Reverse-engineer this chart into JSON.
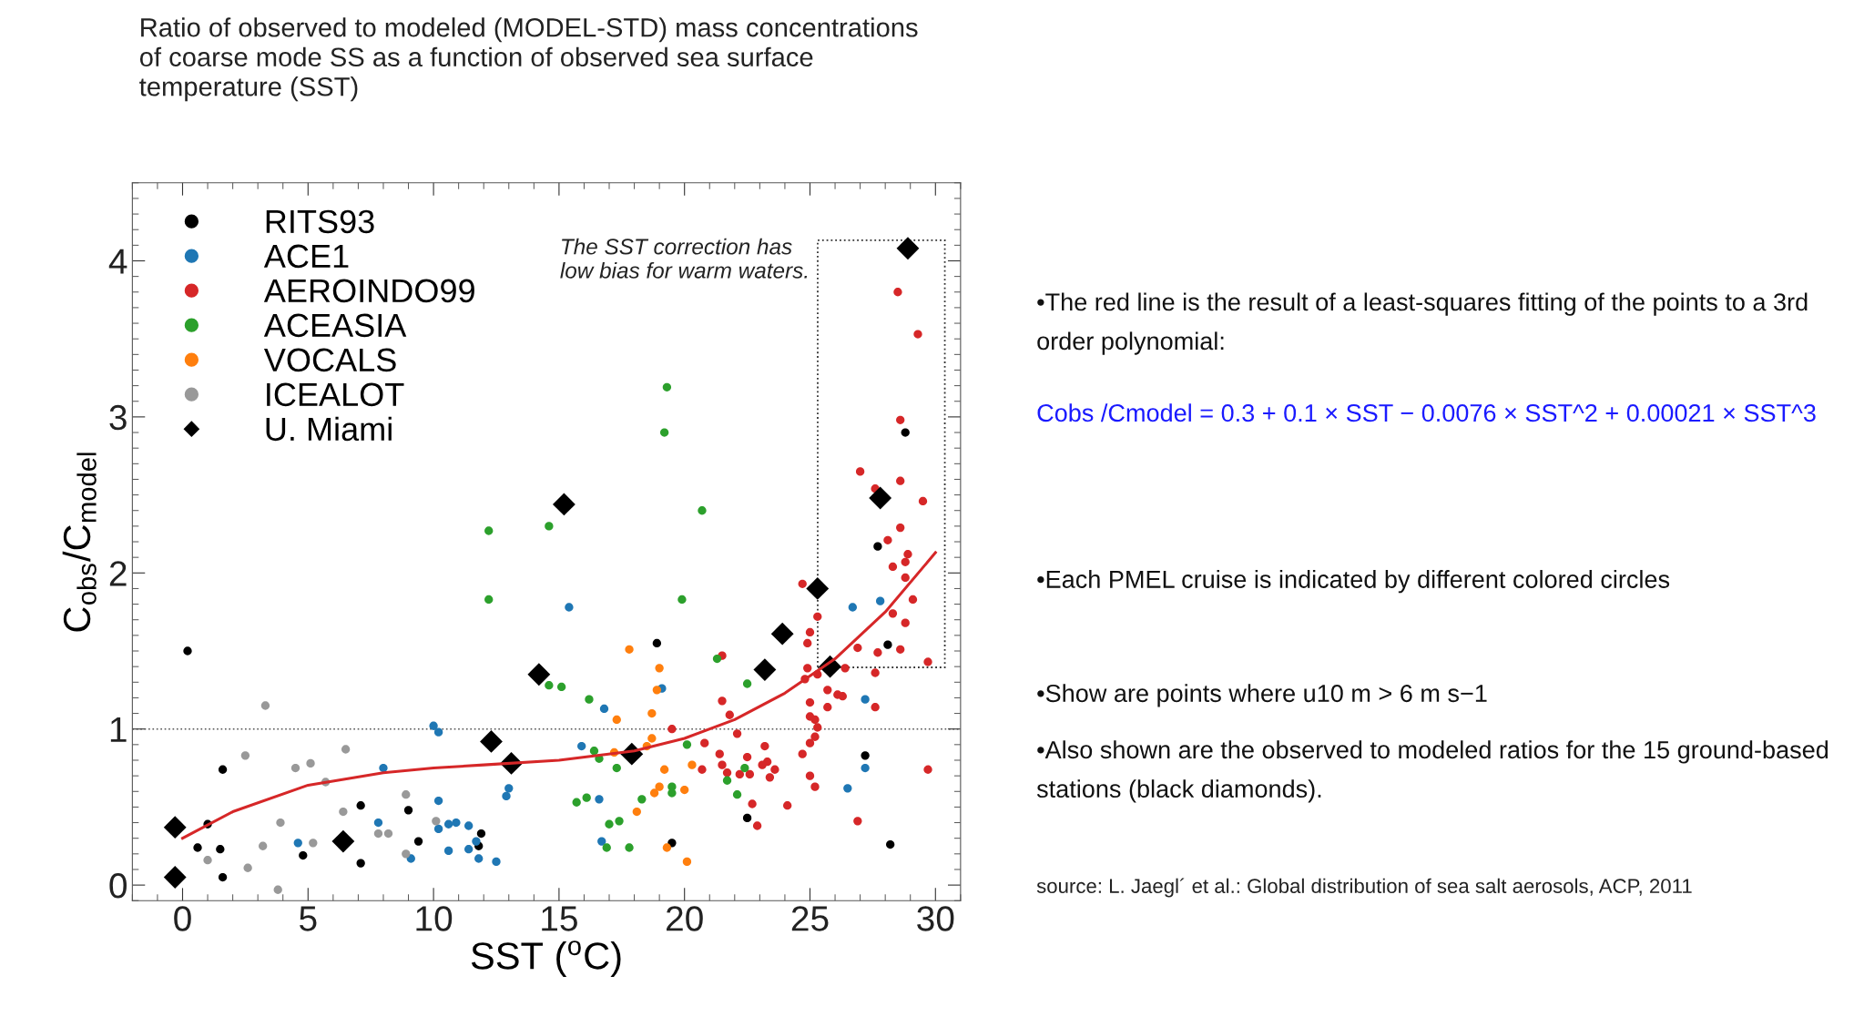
{
  "chart_data": {
    "type": "scatter",
    "title": "Ratio of observed to modeled (MODEL-STD) mass concentrations of coarse mode SS as a function of observed sea surface temperature (SST)",
    "xlabel": "SST ($^{o}$C)",
    "ylabel": "C$_{obs}$/C$_{model}$",
    "xlim": [
      -2,
      31
    ],
    "xticks": [
      0,
      5,
      10,
      15,
      20,
      25,
      30
    ],
    "ylim": [
      -0.1,
      4.5
    ],
    "yticks": [
      0,
      1,
      2,
      3,
      4
    ],
    "grid": false,
    "legend": "top left",
    "marker": "circle",
    "series": [
      {
        "name": "RITS93",
        "color": "#000000",
        "x": [
          0.2,
          1.6,
          1.0,
          0.6,
          1.5,
          1.6,
          7.1,
          7.1,
          4.8,
          9.0,
          9.4,
          11.9,
          11.8,
          18.9,
          19.5,
          22.5,
          27.7,
          28.1,
          27.2,
          28.2,
          28.8
        ],
        "values": [
          1.5,
          0.74,
          0.39,
          0.24,
          0.23,
          0.05,
          0.51,
          0.14,
          0.19,
          0.48,
          0.28,
          0.33,
          0.25,
          1.55,
          0.27,
          0.43,
          2.17,
          1.54,
          0.83,
          0.26,
          2.9
        ]
      },
      {
        "name": "ACE1",
        "color": "#1f77b4",
        "x": [
          10.0,
          10.2,
          8.0,
          7.8,
          4.6,
          9.1,
          10.2,
          10.2,
          10.6,
          10.9,
          11.4,
          10.6,
          11.4,
          11.7,
          11.8,
          12.5,
          12.9,
          13.0,
          15.4,
          19.1,
          16.8,
          15.9,
          16.6,
          16.7,
          26.7,
          27.8,
          27.2,
          27.2,
          26.5
        ],
        "values": [
          1.02,
          0.98,
          0.75,
          0.4,
          0.27,
          0.17,
          0.54,
          0.36,
          0.39,
          0.4,
          0.38,
          0.22,
          0.23,
          0.28,
          0.17,
          0.15,
          0.57,
          0.62,
          1.78,
          1.26,
          1.13,
          0.89,
          0.55,
          0.28,
          1.78,
          1.82,
          1.19,
          0.75,
          0.62
        ]
      },
      {
        "name": "AEROINDO99",
        "color": "#d62728",
        "x": [
          28.5,
          29.3,
          28.6,
          27.0,
          28.6,
          29.5,
          27.6,
          28.6,
          28.1,
          28.9,
          28.3,
          28.8,
          28.8,
          29.1,
          28.3,
          28.8,
          28.6,
          27.7,
          29.7,
          26.9,
          27.6,
          27.6,
          26.9,
          29.7,
          24.7,
          25.3,
          25.0,
          24.9,
          24.9,
          24.8,
          25.3,
          25.7,
          26.1,
          25.7,
          25.0,
          25.0,
          25.2,
          25.3,
          25.2,
          25.0,
          24.7,
          25.0,
          25.2,
          21.5,
          21.5,
          21.8,
          19.5,
          22.1,
          20.8,
          20.7,
          21.4,
          21.5,
          21.7,
          22.2,
          22.5,
          22.6,
          23.2,
          23.3,
          23.1,
          23.4,
          23.6,
          22.7,
          24.1,
          22.9,
          26.4,
          26.3
        ],
        "values": [
          3.8,
          3.53,
          2.98,
          2.65,
          2.59,
          2.46,
          2.54,
          2.29,
          2.21,
          2.12,
          2.04,
          2.07,
          1.97,
          1.83,
          1.74,
          1.68,
          1.51,
          1.49,
          1.43,
          1.52,
          1.36,
          1.14,
          0.41,
          0.74,
          1.93,
          1.72,
          1.62,
          1.55,
          1.39,
          1.32,
          1.35,
          1.25,
          1.22,
          1.14,
          1.17,
          1.08,
          1.06,
          1.01,
          0.95,
          0.91,
          0.84,
          0.7,
          0.63,
          1.47,
          1.18,
          1.09,
          1.0,
          0.97,
          0.91,
          0.74,
          0.84,
          0.77,
          0.72,
          0.71,
          0.82,
          0.71,
          0.89,
          0.79,
          0.77,
          0.69,
          0.74,
          0.52,
          0.51,
          0.38,
          1.39,
          1.21
        ]
      },
      {
        "name": "ACEASIA",
        "color": "#2ca02c",
        "x": [
          12.2,
          14.6,
          12.2,
          14.6,
          15.1,
          19.3,
          19.2,
          20.7,
          19.9,
          16.2,
          16.4,
          16.6,
          17.3,
          15.7,
          16.1,
          17.0,
          17.4,
          16.9,
          17.8,
          18.3,
          19.5,
          19.5,
          20.1,
          21.3,
          22.5,
          22.4,
          21.7,
          22.1
        ],
        "values": [
          2.27,
          2.3,
          1.83,
          1.28,
          1.27,
          3.19,
          2.9,
          2.4,
          1.83,
          1.19,
          0.86,
          0.81,
          0.75,
          0.53,
          0.56,
          0.39,
          0.41,
          0.24,
          0.24,
          0.55,
          0.63,
          0.59,
          0.9,
          1.45,
          1.29,
          0.75,
          0.67,
          0.58
        ]
      },
      {
        "name": "VOCALS",
        "color": "#ff7f0e",
        "x": [
          17.8,
          19.0,
          18.9,
          18.7,
          17.3,
          18.7,
          18.5,
          17.2,
          19.2,
          20.3,
          19.0,
          18.8,
          20.0,
          18.1,
          19.3,
          20.1
        ],
        "values": [
          1.51,
          1.39,
          1.25,
          1.1,
          1.06,
          0.94,
          0.89,
          0.85,
          0.74,
          0.77,
          0.63,
          0.59,
          0.61,
          0.47,
          0.24,
          0.15
        ]
      },
      {
        "name": "ICEALOT",
        "color": "#999999",
        "x": [
          3.3,
          2.5,
          6.5,
          4.5,
          5.1,
          5.7,
          8.9,
          3.9,
          6.4,
          7.8,
          8.2,
          3.2,
          5.2,
          1.0,
          2.6,
          8.9,
          10.1,
          3.8
        ],
        "values": [
          1.15,
          0.83,
          0.87,
          0.75,
          0.78,
          0.66,
          0.58,
          0.4,
          0.47,
          0.33,
          0.33,
          0.25,
          0.27,
          0.16,
          0.11,
          0.2,
          0.41,
          -0.03
        ]
      },
      {
        "name": "U. Miami",
        "color": "#000000",
        "marker": "diamond",
        "x": [
          -0.3,
          -0.3,
          6.4,
          14.2,
          12.3,
          13.1,
          15.2,
          17.9,
          23.2,
          23.9,
          25.3,
          25.8,
          27.8,
          28.9
        ],
        "values": [
          0.37,
          0.05,
          0.28,
          1.35,
          0.92,
          0.78,
          2.44,
          0.84,
          1.38,
          1.61,
          1.9,
          1.4,
          2.48,
          4.08
        ]
      },
      {
        "type": "line",
        "color": "#d62728",
        "marker": "none",
        "x": [
          0,
          2,
          5,
          8,
          10,
          12,
          15,
          18,
          20,
          22,
          24,
          26,
          28,
          30
        ],
        "values": [
          0.3,
          0.47,
          0.64,
          0.72,
          0.75,
          0.77,
          0.8,
          0.86,
          0.94,
          1.06,
          1.23,
          1.45,
          1.75,
          2.13
        ]
      }
    ],
    "ref_lines": [
      {
        "axis": "y",
        "value": 1,
        "color": "#555555",
        "line_style": "dotted"
      }
    ],
    "annotations": [
      "The SST correction has low bias for warm waters.",
      "•The red line is the result of a least-squares fitting of the points to a 3rd order polynomial:",
      "Cobs /Cmodel = 0.3 + 0.1 × SST − 0.0076 × SST^2 + 0.00021 × SST^3",
      "•Each PMEL cruise is indicated by different colored circles",
      "•Show are points where u10 m > 6 m s−1",
      "•Also shown are the observed to modeled ratios for the 15 ground-based stations (black diamonds).",
      "source: L. Jaegl´ et al.: Global distribution of sea salt aerosols, ACP, 2011"
    ]
  }
}
